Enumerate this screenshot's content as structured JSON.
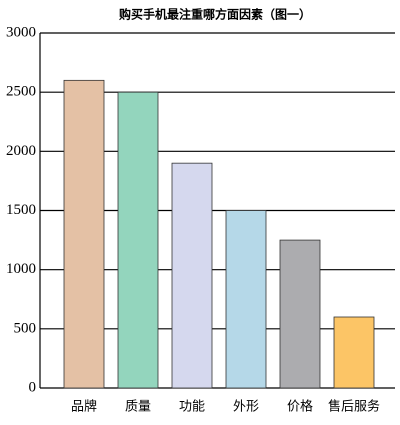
{
  "chart_data": {
    "type": "bar",
    "title": "购买手机最注重哪方面因素（图一）",
    "categories": [
      "品牌",
      "质量",
      "功能",
      "外形",
      "价格",
      "售后服务"
    ],
    "values": [
      2600,
      2500,
      1900,
      1500,
      1250,
      600
    ],
    "colors": [
      "#e4c1a5",
      "#93d5bd",
      "#d5d8ee",
      "#b5d8e8",
      "#acacaf",
      "#fcc566"
    ],
    "ylim": [
      0,
      3000
    ],
    "yticks": [
      0,
      500,
      1000,
      1500,
      2000,
      2500,
      3000
    ],
    "grid": true
  }
}
